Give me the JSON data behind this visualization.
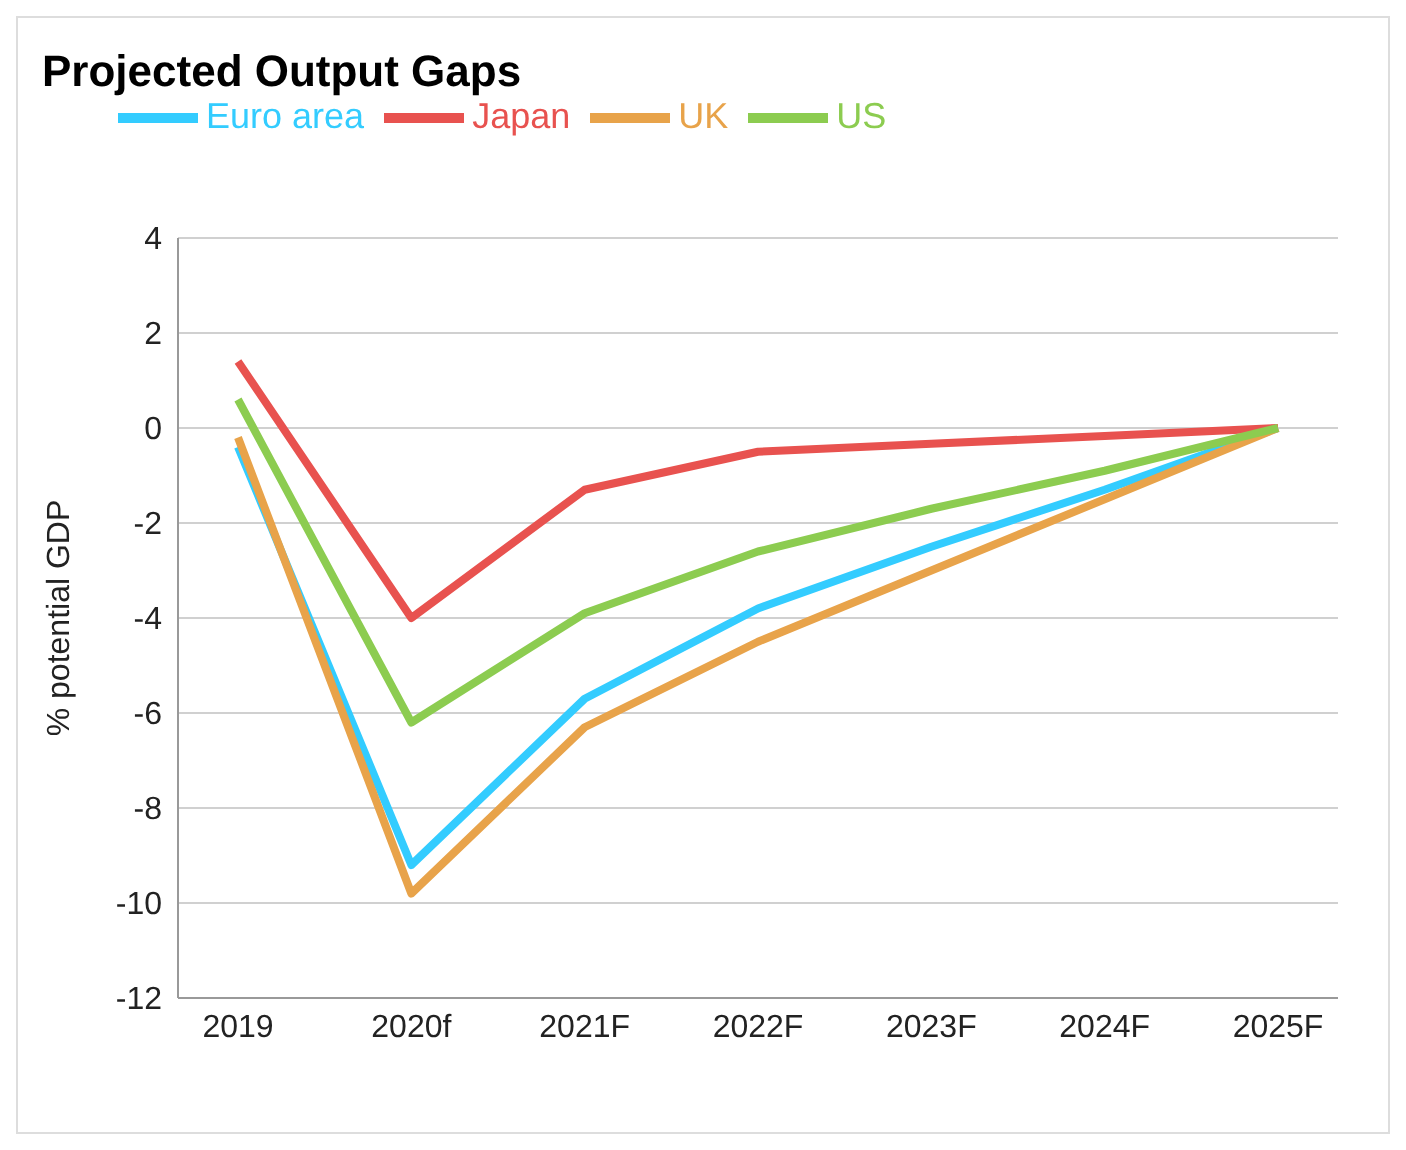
{
  "chart_data": {
    "type": "line",
    "title": "Projected Output Gaps",
    "ylabel": "% potential GDP",
    "categories": [
      "2019",
      "2020f",
      "2021F",
      "2022F",
      "2023F",
      "2024F",
      "2025F"
    ],
    "series": [
      {
        "name": "Euro area",
        "color": "#33ccff",
        "values": [
          -0.4,
          -9.2,
          -5.7,
          -3.8,
          -2.5,
          -1.3,
          0
        ]
      },
      {
        "name": "Japan",
        "color": "#e8524f",
        "values": [
          1.4,
          -4.0,
          -1.3,
          -0.5,
          -0.33,
          -0.17,
          0
        ]
      },
      {
        "name": "UK",
        "color": "#e8a34a",
        "values": [
          -0.2,
          -9.8,
          -6.3,
          -4.5,
          -3.0,
          -1.5,
          0
        ]
      },
      {
        "name": "US",
        "color": "#8ccc50",
        "values": [
          0.6,
          -6.2,
          -3.9,
          -2.6,
          -1.7,
          -0.9,
          0
        ]
      }
    ],
    "ylim": [
      -12,
      4
    ],
    "yticks": [
      -12,
      -10,
      -8,
      -6,
      -4,
      -2,
      0,
      2,
      4
    ],
    "grid": "y",
    "legend": "top",
    "marker": "none",
    "line_style": "solid"
  }
}
